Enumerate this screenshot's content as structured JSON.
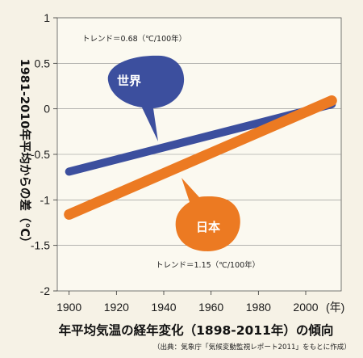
{
  "chart_data": {
    "type": "line",
    "title": "年平均気温の経年変化（1898-2011年）の傾向",
    "source": "（出典：気象庁「気候変動監視レポート2011」をもとに作成）",
    "ylabel": "1981-2010年平均からの差（℃）",
    "x_unit": "(年)",
    "xlim": [
      1895,
      2015
    ],
    "ylim": [
      -2,
      1
    ],
    "x_ticks": [
      "1900",
      "1920",
      "1940",
      "1960",
      "1980",
      "2000"
    ],
    "y_ticks": [
      "1",
      "0.5",
      "0",
      "-0.5",
      "-1",
      "-1.5",
      "-2"
    ],
    "grid": true,
    "series": [
      {
        "name": "世界",
        "trend_label": "トレンド＝0.68（℃/100年）",
        "color": "#3c4f9e",
        "x": [
          1900,
          2011
        ],
        "y": [
          -0.69,
          0.05
        ]
      },
      {
        "name": "日本",
        "trend_label": "トレンド＝1.15（℃/100年）",
        "color": "#ec7a22",
        "x": [
          1900,
          2011
        ],
        "y": [
          -1.16,
          0.09
        ]
      }
    ]
  }
}
